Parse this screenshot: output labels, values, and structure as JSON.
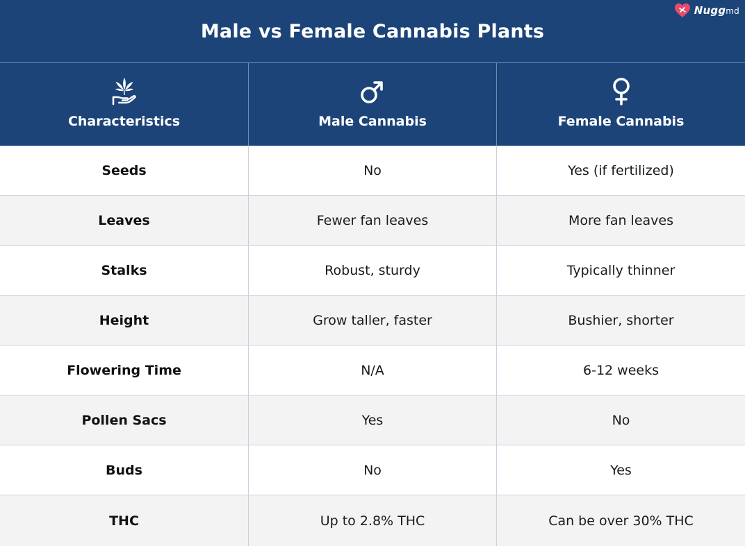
{
  "title": "Male vs Female Cannabis Plants",
  "logo": {
    "brand": "Nugg",
    "suffix": "md",
    "icon": "heart-icon"
  },
  "colors": {
    "header_bg": "#1c4478",
    "alt_row_bg": "#f3f3f3",
    "grid": "#c8d1de"
  },
  "columns": [
    {
      "label": "Characteristics",
      "icon": "cannabis-hand-icon"
    },
    {
      "label": "Male Cannabis",
      "icon": "male-symbol-icon"
    },
    {
      "label": "Female Cannabis",
      "icon": "female-symbol-icon"
    }
  ],
  "rows": [
    {
      "characteristic": "Seeds",
      "male": "No",
      "female": "Yes (if fertilized)"
    },
    {
      "characteristic": "Leaves",
      "male": "Fewer fan leaves",
      "female": "More fan leaves"
    },
    {
      "characteristic": "Stalks",
      "male": "Robust, sturdy",
      "female": "Typically thinner"
    },
    {
      "characteristic": "Height",
      "male": "Grow taller, faster",
      "female": "Bushier, shorter"
    },
    {
      "characteristic": "Flowering Time",
      "male": "N/A",
      "female": "6-12 weeks"
    },
    {
      "characteristic": "Pollen Sacs",
      "male": "Yes",
      "female": "No"
    },
    {
      "characteristic": "Buds",
      "male": "No",
      "female": "Yes"
    },
    {
      "characteristic": "THC",
      "male": "Up to 2.8% THC",
      "female": "Can be over 30% THC"
    }
  ]
}
